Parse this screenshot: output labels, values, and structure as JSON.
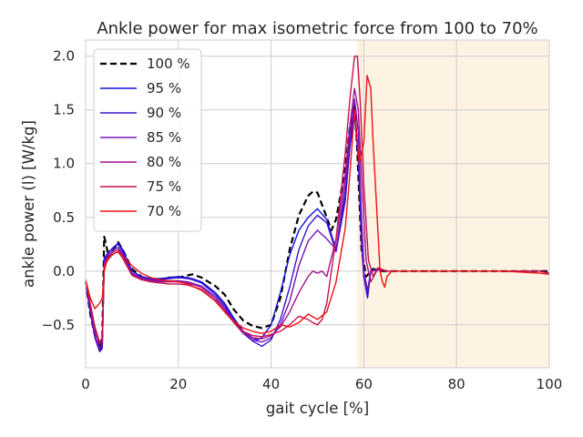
{
  "chart_data": {
    "type": "line",
    "title": "Ankle power for max isometric force from 100 to 70%",
    "xlabel": "gait cycle [%]",
    "ylabel": "ankle power (l) [W/kg]",
    "xlim": [
      0,
      100
    ],
    "ylim": [
      -0.9,
      2.15
    ],
    "xticks": [
      0,
      20,
      40,
      60,
      80,
      100
    ],
    "yticks": [
      -0.5,
      0.0,
      0.5,
      1.0,
      1.5,
      2.0
    ],
    "xtick_labels": [
      "0",
      "20",
      "40",
      "60",
      "80",
      "100"
    ],
    "ytick_labels": [
      "−0.5",
      "0.0",
      "0.5",
      "1.0",
      "1.5",
      "2.0"
    ],
    "grid": true,
    "legend_position": "upper left",
    "shaded_region": {
      "x_start": 58.5,
      "x_end": 100,
      "color": "#fdebd3"
    },
    "series": [
      {
        "name": "100 %",
        "color": "#000000",
        "dashed": true,
        "x": [
          0,
          1,
          2,
          3,
          3.6,
          4,
          4.4,
          5,
          6,
          7,
          8,
          10,
          12,
          14,
          16,
          18,
          20,
          22,
          23,
          25,
          28,
          30,
          32,
          34,
          36,
          38,
          40,
          42,
          44,
          46,
          48,
          49,
          50,
          52,
          53,
          54,
          56,
          57,
          58,
          58.6,
          59.5,
          60.5,
          62,
          64,
          70,
          80,
          90,
          98,
          100
        ],
        "y": [
          -0.1,
          -0.4,
          -0.6,
          -0.72,
          -0.6,
          0.32,
          0.25,
          0.12,
          0.2,
          0.27,
          0.2,
          0.02,
          -0.05,
          -0.09,
          -0.08,
          -0.06,
          -0.06,
          -0.04,
          -0.03,
          -0.06,
          -0.14,
          -0.22,
          -0.36,
          -0.46,
          -0.51,
          -0.53,
          -0.5,
          -0.25,
          0.2,
          0.52,
          0.7,
          0.74,
          0.73,
          0.5,
          0.38,
          0.48,
          0.95,
          1.35,
          1.55,
          1.1,
          0.2,
          -0.05,
          0.02,
          0.0,
          0.0,
          0.0,
          0.0,
          0.0,
          0.0
        ]
      },
      {
        "name": "95 %",
        "color": "#1010d8",
        "dashed": false,
        "x": [
          0,
          1,
          2,
          3,
          3.6,
          4,
          4.5,
          5,
          6,
          7,
          8,
          10,
          12,
          14,
          16,
          18,
          20,
          22,
          23,
          25,
          28,
          30,
          32,
          34,
          36,
          37,
          38,
          40,
          42,
          44,
          46,
          48,
          50,
          52,
          54,
          56,
          57,
          58,
          58.8,
          59.5,
          60,
          60.8,
          61.5,
          63,
          65,
          70,
          80,
          90,
          98,
          100
        ],
        "y": [
          -0.1,
          -0.38,
          -0.6,
          -0.74,
          -0.7,
          0.12,
          0.15,
          0.18,
          0.22,
          0.26,
          0.2,
          0.0,
          -0.05,
          -0.07,
          -0.07,
          -0.06,
          -0.05,
          -0.06,
          -0.07,
          -0.1,
          -0.2,
          -0.3,
          -0.44,
          -0.56,
          -0.62,
          -0.64,
          -0.62,
          -0.5,
          -0.2,
          0.15,
          0.38,
          0.5,
          0.58,
          0.48,
          0.2,
          0.7,
          1.2,
          1.5,
          1.1,
          0.3,
          -0.05,
          -0.25,
          0.0,
          0.02,
          0.0,
          0.0,
          0.0,
          0.0,
          0.0,
          -0.02
        ]
      },
      {
        "name": "90 %",
        "color": "#3a12d0",
        "dashed": false,
        "x": [
          0,
          1,
          2,
          3,
          3.6,
          4,
          4.5,
          5,
          6,
          7,
          8,
          10,
          12,
          14,
          16,
          18,
          20,
          22,
          23,
          25,
          28,
          30,
          32,
          34,
          36,
          38,
          40,
          42,
          44,
          46,
          48,
          50,
          52,
          54,
          56,
          57,
          58,
          58.8,
          59.5,
          60,
          60.8,
          61.5,
          63,
          65,
          70,
          80,
          90,
          98,
          100
        ],
        "y": [
          -0.1,
          -0.38,
          -0.62,
          -0.75,
          -0.72,
          0.1,
          0.14,
          0.18,
          0.22,
          0.25,
          0.18,
          -0.02,
          -0.06,
          -0.08,
          -0.08,
          -0.07,
          -0.06,
          -0.07,
          -0.08,
          -0.11,
          -0.22,
          -0.32,
          -0.46,
          -0.58,
          -0.65,
          -0.7,
          -0.64,
          -0.45,
          -0.15,
          0.2,
          0.42,
          0.52,
          0.45,
          0.18,
          0.65,
          1.15,
          1.45,
          1.05,
          0.25,
          -0.05,
          -0.22,
          0.0,
          0.02,
          0.0,
          0.0,
          0.0,
          0.0,
          0.0,
          -0.02
        ]
      },
      {
        "name": "85 %",
        "color": "#7812b8",
        "dashed": false,
        "x": [
          0,
          1,
          2,
          3,
          3.6,
          4,
          4.5,
          5,
          6,
          7,
          8,
          10,
          12,
          14,
          16,
          18,
          20,
          22,
          25,
          28,
          30,
          32,
          34,
          36,
          38,
          40,
          42,
          44,
          46,
          48,
          50,
          52,
          54,
          56,
          57,
          58,
          58.8,
          59.5,
          60,
          60.8,
          61.5,
          63,
          65,
          70,
          80,
          90,
          98,
          100
        ],
        "y": [
          -0.08,
          -0.35,
          -0.6,
          -0.72,
          -0.68,
          0.08,
          0.12,
          0.16,
          0.2,
          0.22,
          0.16,
          -0.02,
          -0.06,
          -0.08,
          -0.09,
          -0.09,
          -0.09,
          -0.1,
          -0.14,
          -0.24,
          -0.34,
          -0.48,
          -0.58,
          -0.64,
          -0.66,
          -0.62,
          -0.5,
          -0.28,
          0.05,
          0.28,
          0.38,
          0.3,
          0.2,
          0.8,
          1.25,
          1.6,
          1.3,
          0.5,
          0.0,
          -0.18,
          0.0,
          0.01,
          0.0,
          0.0,
          0.0,
          0.0,
          0.0,
          -0.02
        ]
      },
      {
        "name": "80 %",
        "color": "#a01290",
        "dashed": false,
        "x": [
          0,
          1,
          2,
          3,
          3.6,
          4,
          4.5,
          5,
          6,
          7,
          8,
          10,
          12,
          14,
          16,
          18,
          20,
          22,
          25,
          28,
          30,
          32,
          34,
          36,
          38,
          40,
          42,
          44,
          46,
          48,
          49,
          50,
          51,
          52,
          54,
          56,
          57,
          58,
          58.8,
          59.5,
          60.5,
          61.5,
          63,
          65,
          70,
          80,
          90,
          98,
          100
        ],
        "y": [
          -0.08,
          -0.32,
          -0.55,
          -0.68,
          -0.65,
          0.05,
          0.1,
          0.14,
          0.18,
          0.2,
          0.14,
          -0.03,
          -0.07,
          -0.09,
          -0.1,
          -0.1,
          -0.1,
          -0.11,
          -0.15,
          -0.26,
          -0.36,
          -0.48,
          -0.58,
          -0.62,
          -0.63,
          -0.6,
          -0.52,
          -0.38,
          -0.2,
          -0.05,
          0.0,
          -0.02,
          0.0,
          -0.05,
          0.3,
          0.9,
          1.35,
          1.7,
          1.5,
          0.9,
          0.1,
          -0.1,
          0.02,
          0.0,
          0.0,
          0.0,
          0.0,
          0.0,
          -0.02
        ]
      },
      {
        "name": "75 %",
        "color": "#c8104e",
        "dashed": false,
        "x": [
          0,
          1,
          2,
          3,
          3.6,
          4,
          4.5,
          5,
          6,
          7,
          8,
          10,
          12,
          14,
          16,
          18,
          20,
          22,
          25,
          28,
          30,
          32,
          34,
          36,
          38,
          40,
          42,
          44,
          46,
          48,
          49,
          50,
          51,
          52,
          54,
          56,
          57,
          58,
          58.6,
          59.2,
          60,
          61,
          62,
          63,
          65,
          70,
          80,
          90,
          98,
          100
        ],
        "y": [
          -0.08,
          -0.3,
          -0.52,
          -0.66,
          -0.62,
          0.05,
          0.1,
          0.13,
          0.16,
          0.18,
          0.12,
          -0.04,
          -0.08,
          -0.1,
          -0.11,
          -0.12,
          -0.12,
          -0.13,
          -0.17,
          -0.28,
          -0.38,
          -0.48,
          -0.56,
          -0.6,
          -0.61,
          -0.59,
          -0.56,
          -0.5,
          -0.42,
          -0.45,
          -0.48,
          -0.5,
          -0.45,
          -0.3,
          0.3,
          1.1,
          1.6,
          2.0,
          2.0,
          1.6,
          0.8,
          0.1,
          -0.05,
          0.03,
          0.0,
          0.0,
          0.0,
          0.0,
          0.0,
          -0.02
        ]
      },
      {
        "name": "70 %",
        "color": "#ee1010",
        "dashed": false,
        "x": [
          0,
          1,
          2,
          3,
          3.6,
          4,
          4.5,
          5,
          6,
          7,
          8,
          10,
          12,
          14,
          16,
          18,
          20,
          22,
          25,
          28,
          30,
          32,
          34,
          36,
          38,
          40,
          42,
          44,
          46,
          48,
          50,
          52,
          54,
          56,
          57,
          58,
          59,
          60,
          60.7,
          61.5,
          62,
          63,
          63.5,
          64,
          64.5,
          65,
          66,
          70,
          80,
          90,
          98,
          100
        ],
        "y": [
          -0.08,
          -0.25,
          -0.35,
          -0.3,
          -0.25,
          0.0,
          0.08,
          0.12,
          0.16,
          0.18,
          0.14,
          0.05,
          -0.02,
          -0.06,
          -0.08,
          -0.09,
          -0.1,
          -0.12,
          -0.18,
          -0.28,
          -0.38,
          -0.47,
          -0.53,
          -0.56,
          -0.58,
          -0.56,
          -0.5,
          -0.52,
          -0.48,
          -0.4,
          -0.45,
          -0.38,
          -0.1,
          0.4,
          0.9,
          1.5,
          1.0,
          1.2,
          1.82,
          1.7,
          1.2,
          0.4,
          0.0,
          -0.1,
          -0.15,
          -0.05,
          0.0,
          0.0,
          0.0,
          0.0,
          -0.02,
          -0.03
        ]
      }
    ]
  }
}
